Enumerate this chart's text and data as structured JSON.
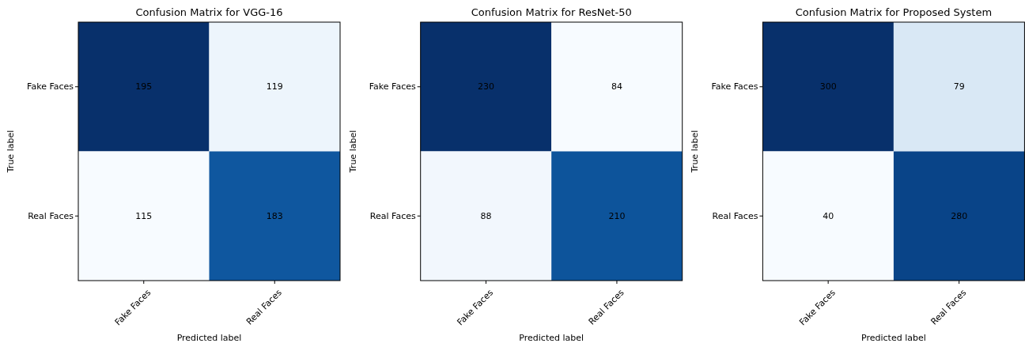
{
  "chart_data": [
    {
      "type": "heatmap",
      "title": "Confusion Matrix for VGG-16",
      "xlabel": "Predicted label",
      "ylabel": "True label",
      "categories": [
        "Fake Faces",
        "Real Faces"
      ],
      "y_categories": [
        "Fake Faces",
        "Real Faces"
      ],
      "cells": [
        [
          195,
          119
        ],
        [
          115,
          183
        ]
      ],
      "data_labels": true
    },
    {
      "type": "heatmap",
      "title": "Confusion Matrix for ResNet-50",
      "xlabel": "Predicted label",
      "ylabel": "True label",
      "categories": [
        "Fake Faces",
        "Real Faces"
      ],
      "y_categories": [
        "Fake Faces",
        "Real Faces"
      ],
      "cells": [
        [
          230,
          84
        ],
        [
          88,
          210
        ]
      ],
      "data_labels": true
    },
    {
      "type": "heatmap",
      "title": "Confusion Matrix for Proposed System",
      "xlabel": "Predicted label",
      "ylabel": "True label",
      "categories": [
        "Fake Faces",
        "Real Faces"
      ],
      "y_categories": [
        "Fake Faces",
        "Real Faces"
      ],
      "cells": [
        [
          300,
          79
        ],
        [
          40,
          280
        ]
      ],
      "data_labels": true
    }
  ]
}
